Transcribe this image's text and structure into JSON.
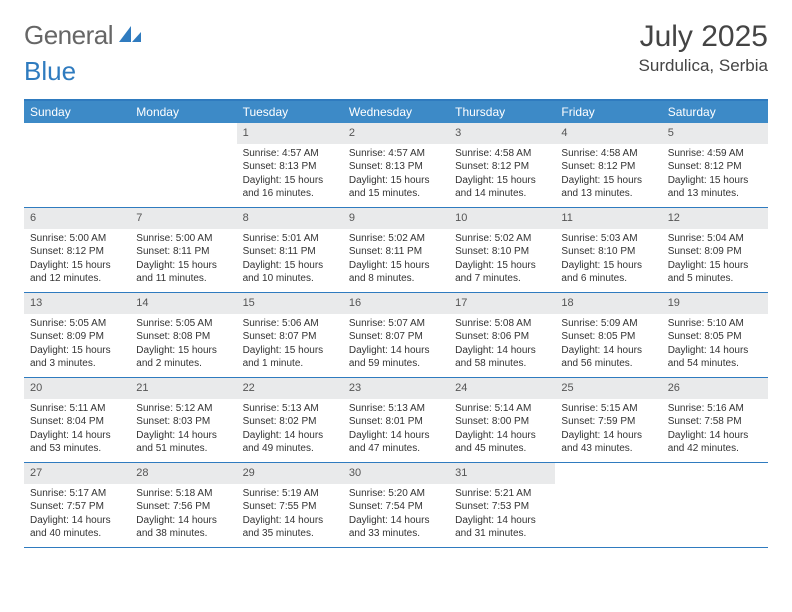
{
  "brand": {
    "text1": "General",
    "text2": "Blue"
  },
  "title": "July 2025",
  "location": "Surdulica, Serbia",
  "colors": {
    "accent": "#3d8ac7",
    "border": "#2f7bbf",
    "daynum_bg": "#e9eaeb",
    "text": "#333333"
  },
  "dayNames": [
    "Sunday",
    "Monday",
    "Tuesday",
    "Wednesday",
    "Thursday",
    "Friday",
    "Saturday"
  ],
  "weeks": [
    [
      {
        "day": "",
        "sunrise": "",
        "sunset": "",
        "daylight": "",
        "empty": true
      },
      {
        "day": "",
        "sunrise": "",
        "sunset": "",
        "daylight": "",
        "empty": true
      },
      {
        "day": "1",
        "sunrise": "Sunrise: 4:57 AM",
        "sunset": "Sunset: 8:13 PM",
        "daylight": "Daylight: 15 hours and 16 minutes."
      },
      {
        "day": "2",
        "sunrise": "Sunrise: 4:57 AM",
        "sunset": "Sunset: 8:13 PM",
        "daylight": "Daylight: 15 hours and 15 minutes."
      },
      {
        "day": "3",
        "sunrise": "Sunrise: 4:58 AM",
        "sunset": "Sunset: 8:12 PM",
        "daylight": "Daylight: 15 hours and 14 minutes."
      },
      {
        "day": "4",
        "sunrise": "Sunrise: 4:58 AM",
        "sunset": "Sunset: 8:12 PM",
        "daylight": "Daylight: 15 hours and 13 minutes."
      },
      {
        "day": "5",
        "sunrise": "Sunrise: 4:59 AM",
        "sunset": "Sunset: 8:12 PM",
        "daylight": "Daylight: 15 hours and 13 minutes."
      }
    ],
    [
      {
        "day": "6",
        "sunrise": "Sunrise: 5:00 AM",
        "sunset": "Sunset: 8:12 PM",
        "daylight": "Daylight: 15 hours and 12 minutes."
      },
      {
        "day": "7",
        "sunrise": "Sunrise: 5:00 AM",
        "sunset": "Sunset: 8:11 PM",
        "daylight": "Daylight: 15 hours and 11 minutes."
      },
      {
        "day": "8",
        "sunrise": "Sunrise: 5:01 AM",
        "sunset": "Sunset: 8:11 PM",
        "daylight": "Daylight: 15 hours and 10 minutes."
      },
      {
        "day": "9",
        "sunrise": "Sunrise: 5:02 AM",
        "sunset": "Sunset: 8:11 PM",
        "daylight": "Daylight: 15 hours and 8 minutes."
      },
      {
        "day": "10",
        "sunrise": "Sunrise: 5:02 AM",
        "sunset": "Sunset: 8:10 PM",
        "daylight": "Daylight: 15 hours and 7 minutes."
      },
      {
        "day": "11",
        "sunrise": "Sunrise: 5:03 AM",
        "sunset": "Sunset: 8:10 PM",
        "daylight": "Daylight: 15 hours and 6 minutes."
      },
      {
        "day": "12",
        "sunrise": "Sunrise: 5:04 AM",
        "sunset": "Sunset: 8:09 PM",
        "daylight": "Daylight: 15 hours and 5 minutes."
      }
    ],
    [
      {
        "day": "13",
        "sunrise": "Sunrise: 5:05 AM",
        "sunset": "Sunset: 8:09 PM",
        "daylight": "Daylight: 15 hours and 3 minutes."
      },
      {
        "day": "14",
        "sunrise": "Sunrise: 5:05 AM",
        "sunset": "Sunset: 8:08 PM",
        "daylight": "Daylight: 15 hours and 2 minutes."
      },
      {
        "day": "15",
        "sunrise": "Sunrise: 5:06 AM",
        "sunset": "Sunset: 8:07 PM",
        "daylight": "Daylight: 15 hours and 1 minute."
      },
      {
        "day": "16",
        "sunrise": "Sunrise: 5:07 AM",
        "sunset": "Sunset: 8:07 PM",
        "daylight": "Daylight: 14 hours and 59 minutes."
      },
      {
        "day": "17",
        "sunrise": "Sunrise: 5:08 AM",
        "sunset": "Sunset: 8:06 PM",
        "daylight": "Daylight: 14 hours and 58 minutes."
      },
      {
        "day": "18",
        "sunrise": "Sunrise: 5:09 AM",
        "sunset": "Sunset: 8:05 PM",
        "daylight": "Daylight: 14 hours and 56 minutes."
      },
      {
        "day": "19",
        "sunrise": "Sunrise: 5:10 AM",
        "sunset": "Sunset: 8:05 PM",
        "daylight": "Daylight: 14 hours and 54 minutes."
      }
    ],
    [
      {
        "day": "20",
        "sunrise": "Sunrise: 5:11 AM",
        "sunset": "Sunset: 8:04 PM",
        "daylight": "Daylight: 14 hours and 53 minutes."
      },
      {
        "day": "21",
        "sunrise": "Sunrise: 5:12 AM",
        "sunset": "Sunset: 8:03 PM",
        "daylight": "Daylight: 14 hours and 51 minutes."
      },
      {
        "day": "22",
        "sunrise": "Sunrise: 5:13 AM",
        "sunset": "Sunset: 8:02 PM",
        "daylight": "Daylight: 14 hours and 49 minutes."
      },
      {
        "day": "23",
        "sunrise": "Sunrise: 5:13 AM",
        "sunset": "Sunset: 8:01 PM",
        "daylight": "Daylight: 14 hours and 47 minutes."
      },
      {
        "day": "24",
        "sunrise": "Sunrise: 5:14 AM",
        "sunset": "Sunset: 8:00 PM",
        "daylight": "Daylight: 14 hours and 45 minutes."
      },
      {
        "day": "25",
        "sunrise": "Sunrise: 5:15 AM",
        "sunset": "Sunset: 7:59 PM",
        "daylight": "Daylight: 14 hours and 43 minutes."
      },
      {
        "day": "26",
        "sunrise": "Sunrise: 5:16 AM",
        "sunset": "Sunset: 7:58 PM",
        "daylight": "Daylight: 14 hours and 42 minutes."
      }
    ],
    [
      {
        "day": "27",
        "sunrise": "Sunrise: 5:17 AM",
        "sunset": "Sunset: 7:57 PM",
        "daylight": "Daylight: 14 hours and 40 minutes."
      },
      {
        "day": "28",
        "sunrise": "Sunrise: 5:18 AM",
        "sunset": "Sunset: 7:56 PM",
        "daylight": "Daylight: 14 hours and 38 minutes."
      },
      {
        "day": "29",
        "sunrise": "Sunrise: 5:19 AM",
        "sunset": "Sunset: 7:55 PM",
        "daylight": "Daylight: 14 hours and 35 minutes."
      },
      {
        "day": "30",
        "sunrise": "Sunrise: 5:20 AM",
        "sunset": "Sunset: 7:54 PM",
        "daylight": "Daylight: 14 hours and 33 minutes."
      },
      {
        "day": "31",
        "sunrise": "Sunrise: 5:21 AM",
        "sunset": "Sunset: 7:53 PM",
        "daylight": "Daylight: 14 hours and 31 minutes."
      },
      {
        "day": "",
        "sunrise": "",
        "sunset": "",
        "daylight": "",
        "empty": true
      },
      {
        "day": "",
        "sunrise": "",
        "sunset": "",
        "daylight": "",
        "empty": true
      }
    ]
  ]
}
